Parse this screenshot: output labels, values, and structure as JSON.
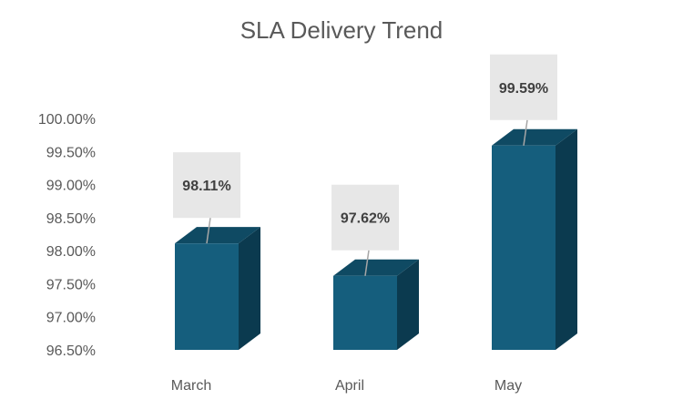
{
  "chart_data": {
    "type": "bar",
    "title": "SLA Delivery Trend",
    "categories": [
      "March",
      "April",
      "May"
    ],
    "values": [
      98.11,
      97.62,
      99.59
    ],
    "data_labels": [
      "98.11%",
      "97.62%",
      "99.59%"
    ],
    "ylim": [
      96.5,
      100.0
    ],
    "y_ticks": [
      96.5,
      97.0,
      97.5,
      98.0,
      98.5,
      99.0,
      99.5,
      100.0
    ],
    "y_tick_labels": [
      "96.50%",
      "97.00%",
      "97.50%",
      "98.00%",
      "98.50%",
      "99.00%",
      "99.50%",
      "100.00%"
    ],
    "xlabel": "",
    "ylabel": "",
    "grid": false,
    "style": "3d-column",
    "colors": {
      "bar_front": "#155e7d",
      "bar_top": "#0f4a63",
      "bar_side": "#0b3a4f",
      "label_box": "#e7e7e7",
      "leader_line": "#a6a6a6"
    }
  }
}
